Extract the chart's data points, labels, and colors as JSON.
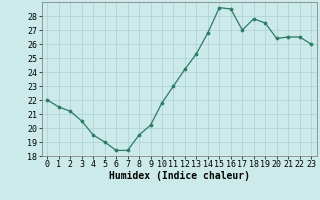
{
  "x": [
    0,
    1,
    2,
    3,
    4,
    5,
    6,
    7,
    8,
    9,
    10,
    11,
    12,
    13,
    14,
    15,
    16,
    17,
    18,
    19,
    20,
    21,
    22,
    23
  ],
  "y": [
    22,
    21.5,
    21.2,
    20.5,
    19.5,
    19.0,
    18.4,
    18.4,
    19.5,
    20.2,
    21.8,
    23.0,
    24.2,
    25.3,
    26.8,
    28.6,
    28.5,
    27.0,
    27.8,
    27.5,
    26.4,
    26.5,
    26.5,
    26.0
  ],
  "line_color": "#2d7a65",
  "marker": "o",
  "marker_size": 2.2,
  "background_color": "#cceaea",
  "grid_color": "#aad0d0",
  "xlabel": "Humidex (Indice chaleur)",
  "ylim": [
    18,
    29
  ],
  "xlim": [
    -0.5,
    23.5
  ],
  "yticks": [
    18,
    19,
    20,
    21,
    22,
    23,
    24,
    25,
    26,
    27,
    28
  ],
  "xticks": [
    0,
    1,
    2,
    3,
    4,
    5,
    6,
    7,
    8,
    9,
    10,
    11,
    12,
    13,
    14,
    15,
    16,
    17,
    18,
    19,
    20,
    21,
    22,
    23
  ],
  "xlabel_fontsize": 7,
  "tick_fontsize": 6
}
